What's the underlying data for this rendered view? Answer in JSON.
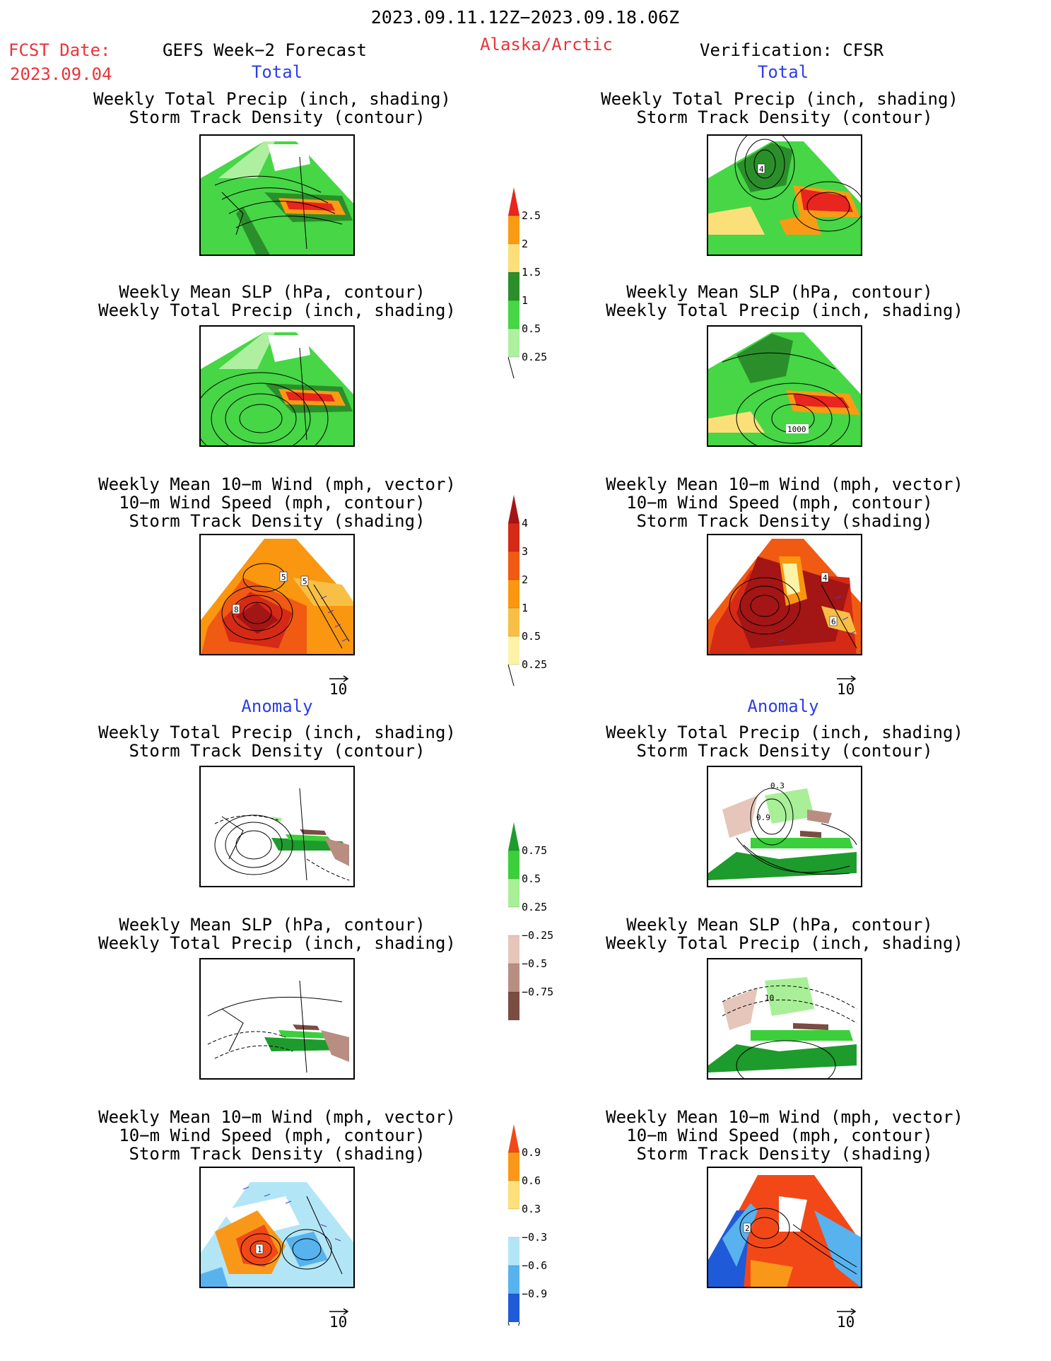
{
  "header": {
    "date_range": "2023.09.11.12Z−2023.09.18.06Z",
    "fcst_label": "FCST Date:",
    "fcst_date": "2023.09.04",
    "model": "GEFS Week−2 Forecast",
    "region": "Alaska/Arctic",
    "verification": "Verification: CFSR"
  },
  "sections": {
    "total_left": "Total",
    "total_right": "Total",
    "anomaly_left": "Anomaly",
    "anomaly_right": "Anomaly"
  },
  "panel_titles": {
    "precip_track": [
      "Weekly Total Precip (inch, shading)",
      "Storm Track Density (contour)"
    ],
    "slp_precip": [
      "Weekly Mean SLP (hPa, contour)",
      "Weekly Total Precip (inch, shading)"
    ],
    "wind_track": [
      "Weekly Mean 10−m Wind (mph, vector)",
      "10−m Wind Speed (mph, contour)",
      "Storm Track Density (shading)"
    ]
  },
  "vector_reference": "10",
  "map_labels": {
    "forecast_wind_total": [
      "5",
      "5",
      "8"
    ],
    "verification_precip_total": [
      "4"
    ],
    "verification_slp_total": [
      "1000"
    ],
    "verification_wind_total": [
      "4",
      "6"
    ],
    "verification_precip_anom": [
      "0.3",
      "0.9"
    ],
    "verification_slp_anom": [
      "10"
    ],
    "forecast_wind_anom": [
      "1"
    ],
    "verification_wind_anom": [
      "2"
    ]
  },
  "colorbars": {
    "total_precip": {
      "labels": [
        "2.5",
        "2",
        "1.5",
        "1",
        "0.5",
        "0.25"
      ],
      "colors": [
        "#e8251e",
        "#f99b14",
        "#fbe07a",
        "#2a8f2a",
        "#46d646",
        "#aef0a0"
      ]
    },
    "total_track": {
      "labels": [
        "4",
        "3",
        "2",
        "1",
        "0.5",
        "0.25"
      ],
      "colors": [
        "#a41515",
        "#d52a16",
        "#f05a12",
        "#fa960f",
        "#f7bf45",
        "#fdf3a8"
      ]
    },
    "anom_precip": {
      "labels": [
        "0.75",
        "0.5",
        "0.25",
        "−0.25",
        "−0.5",
        "−0.75"
      ],
      "colors": [
        "#1e9b2d",
        "#3ccf3c",
        "#a8ef98",
        "#ffffff",
        "#e6c6ba",
        "#b88e82",
        "#7a4c42"
      ]
    },
    "anom_track": {
      "labels": [
        "0.9",
        "0.6",
        "0.3",
        "−0.3",
        "−0.6",
        "−0.9"
      ],
      "colors": [
        "#f24818",
        "#f99818",
        "#fde07a",
        "#ffffff",
        "#b2e6f6",
        "#58b2ee",
        "#1f5ad8"
      ]
    }
  },
  "colors": {
    "label_red": "#e8343a",
    "label_blue": "#2b3ee6"
  }
}
